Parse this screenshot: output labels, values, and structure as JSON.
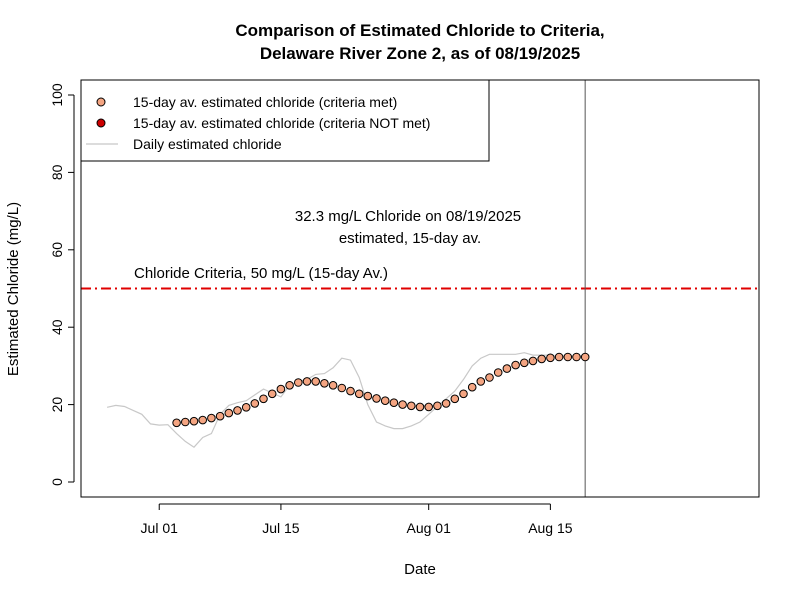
{
  "chart_data": {
    "type": "scatter",
    "title_lines": [
      "Comparison of Estimated Chloride to Criteria,",
      "Delaware River Zone 2, as of 08/19/2025"
    ],
    "xlabel": "Date",
    "ylabel": "Estimated Chloride (mg/L)",
    "xlim": [
      "2025-06-22",
      "2025-09-08"
    ],
    "ylim": [
      0,
      100
    ],
    "x_ticks": [
      {
        "date": "2025-07-01",
        "label": "Jul 01"
      },
      {
        "date": "2025-07-15",
        "label": "Jul 15"
      },
      {
        "date": "2025-08-01",
        "label": "Aug 01"
      },
      {
        "date": "2025-08-15",
        "label": "Aug 15"
      }
    ],
    "y_ticks": [
      0,
      20,
      40,
      60,
      80,
      100
    ],
    "grid": false,
    "legend": {
      "placement": "top-left",
      "entries": [
        {
          "label": "15-day av. estimated chloride (criteria met)",
          "kind": "point",
          "color": "#F4A582"
        },
        {
          "label": "15-day av. estimated chloride (criteria NOT met)",
          "kind": "point",
          "color": "#CC0000"
        },
        {
          "label": "Daily estimated chloride",
          "kind": "line",
          "color": "#C8C8C8"
        }
      ]
    },
    "criteria": {
      "value": 50,
      "label": "Chloride Criteria, 50 mg/L (15-day Av.)",
      "color": "#E00000"
    },
    "current_date": "2025-08-19",
    "annotation_lines": [
      "32.3 mg/L Chloride on 08/19/2025",
      "estimated, 15-day av."
    ],
    "series": [
      {
        "kind": "line",
        "color": "#C8C8C8",
        "x": [
          "2025-06-25",
          "2025-06-26",
          "2025-06-27",
          "2025-06-28",
          "2025-06-29",
          "2025-06-30",
          "2025-07-01",
          "2025-07-02",
          "2025-07-03",
          "2025-07-04",
          "2025-07-05",
          "2025-07-06",
          "2025-07-07",
          "2025-07-08",
          "2025-07-09",
          "2025-07-10",
          "2025-07-11",
          "2025-07-12",
          "2025-07-13",
          "2025-07-14",
          "2025-07-15",
          "2025-07-16",
          "2025-07-17",
          "2025-07-18",
          "2025-07-19",
          "2025-07-20",
          "2025-07-21",
          "2025-07-22",
          "2025-07-23",
          "2025-07-24",
          "2025-07-25",
          "2025-07-26",
          "2025-07-27",
          "2025-07-28",
          "2025-07-29",
          "2025-07-30",
          "2025-07-31",
          "2025-08-01",
          "2025-08-02",
          "2025-08-03",
          "2025-08-04",
          "2025-08-05",
          "2025-08-06",
          "2025-08-07",
          "2025-08-08",
          "2025-08-09",
          "2025-08-10",
          "2025-08-11",
          "2025-08-12",
          "2025-08-13",
          "2025-08-14",
          "2025-08-15",
          "2025-08-16",
          "2025-08-17",
          "2025-08-18",
          "2025-08-19"
        ],
        "values": [
          19.3,
          19.8,
          19.5,
          18.5,
          17.5,
          15.0,
          14.7,
          14.8,
          12.5,
          10.5,
          9.0,
          11.5,
          12.5,
          17.5,
          19.8,
          20.5,
          21.0,
          22.5,
          24.0,
          23.0,
          22.0,
          25.0,
          26.0,
          26.5,
          27.8,
          28.0,
          29.5,
          32.0,
          31.5,
          27.0,
          20.0,
          15.5,
          14.5,
          13.8,
          13.8,
          14.5,
          15.5,
          17.5,
          19.5,
          21.5,
          23.5,
          26.5,
          30.0,
          32.0,
          33.0,
          33.0,
          33.0,
          33.0,
          33.4,
          32.8,
          32.8,
          32.8,
          32.3,
          32.3,
          32.3,
          32.3
        ]
      },
      {
        "kind": "points",
        "name": "15-day av. estimated chloride (criteria met)",
        "color": "#F4A582",
        "x": [
          "2025-07-03",
          "2025-07-04",
          "2025-07-05",
          "2025-07-06",
          "2025-07-07",
          "2025-07-08",
          "2025-07-09",
          "2025-07-10",
          "2025-07-11",
          "2025-07-12",
          "2025-07-13",
          "2025-07-14",
          "2025-07-15",
          "2025-07-16",
          "2025-07-17",
          "2025-07-18",
          "2025-07-19",
          "2025-07-20",
          "2025-07-21",
          "2025-07-22",
          "2025-07-23",
          "2025-07-24",
          "2025-07-25",
          "2025-07-26",
          "2025-07-27",
          "2025-07-28",
          "2025-07-29",
          "2025-07-30",
          "2025-07-31",
          "2025-08-01",
          "2025-08-02",
          "2025-08-03",
          "2025-08-04",
          "2025-08-05",
          "2025-08-06",
          "2025-08-07",
          "2025-08-08",
          "2025-08-09",
          "2025-08-10",
          "2025-08-11",
          "2025-08-12",
          "2025-08-13",
          "2025-08-14",
          "2025-08-15",
          "2025-08-16",
          "2025-08-17",
          "2025-08-18",
          "2025-08-19"
        ],
        "values": [
          15.3,
          15.5,
          15.7,
          16.0,
          16.5,
          17.0,
          17.8,
          18.5,
          19.3,
          20.3,
          21.5,
          22.8,
          24.0,
          25.0,
          25.7,
          26.0,
          26.0,
          25.5,
          25.0,
          24.3,
          23.5,
          22.8,
          22.2,
          21.6,
          21.0,
          20.5,
          20.0,
          19.7,
          19.4,
          19.4,
          19.7,
          20.3,
          21.5,
          22.8,
          24.5,
          26.0,
          27.0,
          28.3,
          29.3,
          30.2,
          30.8,
          31.3,
          31.8,
          32.1,
          32.3,
          32.3,
          32.3,
          32.3
        ]
      },
      {
        "kind": "points",
        "name": "15-day av. estimated chloride (criteria NOT met)",
        "color": "#CC0000",
        "x": [],
        "values": []
      }
    ]
  }
}
